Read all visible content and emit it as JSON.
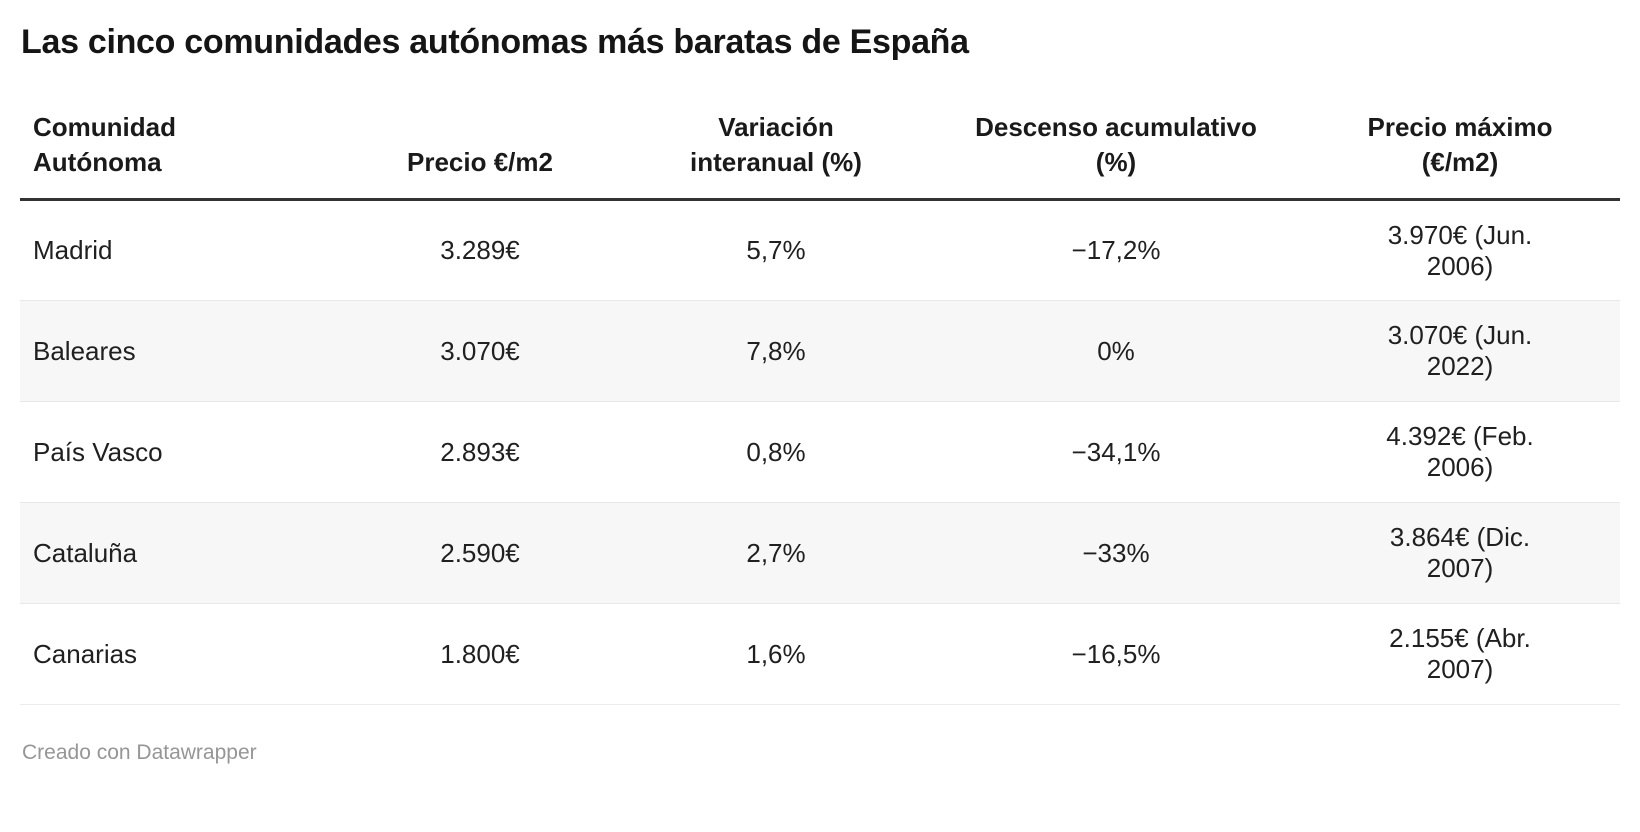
{
  "chart_data": {
    "type": "table",
    "title": "Las cinco comunidades autónomas más baratas de España",
    "columns": [
      "Comunidad Autónoma",
      "Precio €/m2",
      "Variación interanual (%)",
      "Descenso acumulativo (%)",
      "Precio máximo (€/m2)"
    ],
    "rows": [
      [
        "Madrid",
        "3.289€",
        "5,7%",
        "−17,2%",
        "3.970€ (Jun. 2006)"
      ],
      [
        "Baleares",
        "3.070€",
        "7,8%",
        "0%",
        "3.070€ (Jun. 2022)"
      ],
      [
        "País Vasco",
        "2.893€",
        "0,8%",
        "−34,1%",
        "4.392€ (Feb. 2006)"
      ],
      [
        "Cataluña",
        "2.590€",
        "2,7%",
        "−33%",
        "3.864€ (Dic. 2007)"
      ],
      [
        "Canarias",
        "1.800€",
        "1,6%",
        "−16,5%",
        "2.155€ (Abr. 2007)"
      ]
    ],
    "layout_hints": {
      "zebra_striping": true,
      "striped_rows": [
        "Baleares",
        "Cataluña"
      ],
      "column_alignment": [
        "left",
        "center",
        "center",
        "center",
        "center"
      ]
    }
  },
  "footer": {
    "credit": "Creado con Datawrapper"
  },
  "colors": {
    "background": "#ffffff",
    "text": "#1a1a1a",
    "stripe": "#f7f7f7",
    "row_border": "#e8e8e8",
    "header_border": "#333333",
    "footer_text": "#969696"
  }
}
